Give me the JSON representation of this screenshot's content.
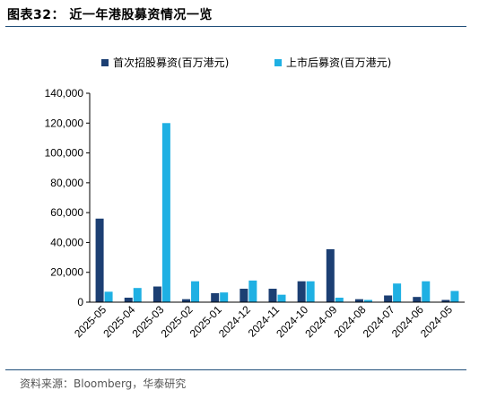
{
  "figure": {
    "title": "图表32： 近一年港股募资情况一览",
    "source": "资料来源：Bloomberg，华泰研究"
  },
  "colors": {
    "series0": "#1c3f73",
    "series1": "#1fb0e3",
    "axis": "#000000",
    "rule": "#1f4e79"
  },
  "chart_data": {
    "type": "bar",
    "categories": [
      "2025-05",
      "2025-04",
      "2025-03",
      "2025-02",
      "2025-01",
      "2024-12",
      "2024-11",
      "2024-10",
      "2024-09",
      "2024-08",
      "2024-07",
      "2024-06",
      "2024-05"
    ],
    "series": [
      {
        "name": "首次招股募资(百万港元)",
        "values": [
          56000,
          3000,
          10500,
          2000,
          6000,
          9000,
          9000,
          14000,
          35500,
          2000,
          4500,
          3500,
          1500
        ]
      },
      {
        "name": "上市后募资(百万港元)",
        "values": [
          7000,
          9500,
          120000,
          14000,
          6500,
          14500,
          5000,
          14000,
          3000,
          1500,
          12500,
          14000,
          7500
        ]
      }
    ],
    "y_ticks": [
      "0",
      "20,000",
      "40,000",
      "60,000",
      "80,000",
      "100,000",
      "120,000",
      "140,000"
    ],
    "ylim": [
      0,
      140000
    ],
    "legend_position": "top",
    "grid": false
  }
}
